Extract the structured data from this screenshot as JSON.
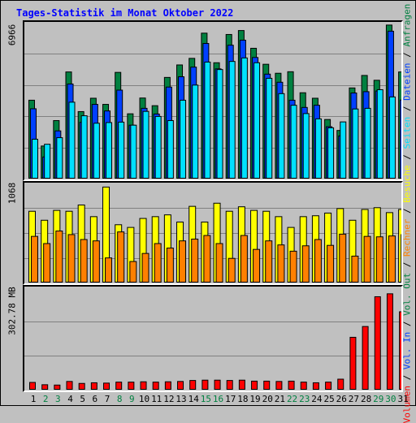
{
  "title": "Tages-Statistik im Monat Oktober 2022",
  "colors": {
    "anfragen": "#008040",
    "dateien": "#0040ff",
    "seiten": "#00e0ff",
    "besuche": "#ffff00",
    "rechner": "#ff8000",
    "volumen": "#ff0000",
    "weekend_day": "#008040",
    "weekday": "#000000"
  },
  "right_legend": [
    {
      "text": "Volumen",
      "color": "#ff0000"
    },
    {
      "text": " / ",
      "color": "#000000"
    },
    {
      "text": "Vol. In",
      "color": "#0040ff"
    },
    {
      "text": " / ",
      "color": "#000000"
    },
    {
      "text": "Vol. Out",
      "color": "#008040"
    },
    {
      "text": " / ",
      "color": "#000000"
    },
    {
      "text": "Rechner",
      "color": "#ff8000"
    },
    {
      "text": " / ",
      "color": "#000000"
    },
    {
      "text": "Besuche",
      "color": "#ffff00"
    },
    {
      "text": " / ",
      "color": "#000000"
    },
    {
      "text": "Seiten",
      "color": "#00e0ff"
    },
    {
      "text": " / ",
      "color": "#000000"
    },
    {
      "text": "Dateien",
      "color": "#0040ff"
    },
    {
      "text": " / ",
      "color": "#000000"
    },
    {
      "text": "Anfragen",
      "color": "#008040"
    }
  ],
  "chart_data": [
    {
      "type": "bar",
      "ymax_label": "6966",
      "ylim": [
        0,
        6966
      ],
      "categories": [
        "1",
        "2",
        "3",
        "4",
        "5",
        "6",
        "7",
        "8",
        "9",
        "10",
        "11",
        "12",
        "13",
        "14",
        "15",
        "16",
        "17",
        "18",
        "19",
        "20",
        "21",
        "22",
        "23",
        "24",
        "25",
        "26",
        "27",
        "28",
        "29",
        "30",
        "31"
      ],
      "weekend": [
        false,
        true,
        true,
        false,
        false,
        false,
        false,
        true,
        true,
        false,
        false,
        false,
        false,
        false,
        true,
        true,
        false,
        false,
        false,
        false,
        false,
        true,
        true,
        false,
        false,
        false,
        false,
        false,
        true,
        true,
        false
      ],
      "series": [
        {
          "name": "Anfragen",
          "values": [
            3560,
            1470,
            2630,
            4850,
            3040,
            3650,
            3370,
            4830,
            2940,
            3660,
            3310,
            4600,
            5170,
            5470,
            6620,
            5270,
            6560,
            6740,
            5930,
            5200,
            4790,
            4860,
            3900,
            3650,
            2680,
            2180,
            4120,
            4690,
            4470,
            6990,
            4850
          ]
        },
        {
          "name": "Dateien",
          "values": [
            3170,
            970,
            2160,
            4300,
            2550,
            3370,
            3070,
            4020,
            2420,
            3190,
            2930,
            4160,
            4630,
            5070,
            6150,
            4990,
            6070,
            6300,
            5510,
            4750,
            4380,
            3560,
            3230,
            3330,
            2350,
            1930,
            3890,
            3950,
            3980,
            6710,
            3570
          ]
        },
        {
          "name": "Seiten",
          "values": [
            1780,
            1550,
            1850,
            3470,
            2850,
            2510,
            2540,
            2560,
            2420,
            3050,
            2820,
            2630,
            3560,
            4250,
            5300,
            4960,
            5330,
            5490,
            5270,
            4560,
            3860,
            3330,
            2950,
            2710,
            2300,
            2570,
            3160,
            3190,
            4040,
            3710,
            3310
          ]
        }
      ]
    },
    {
      "type": "bar",
      "ymax_label": "1068",
      "ylim": [
        0,
        1068
      ],
      "categories": [
        "1",
        "2",
        "3",
        "4",
        "5",
        "6",
        "7",
        "8",
        "9",
        "10",
        "11",
        "12",
        "13",
        "14",
        "15",
        "16",
        "17",
        "18",
        "19",
        "20",
        "21",
        "22",
        "23",
        "24",
        "25",
        "26",
        "27",
        "28",
        "29",
        "30",
        "31"
      ],
      "series": [
        {
          "name": "Besuche",
          "values": [
            790,
            690,
            800,
            790,
            860,
            730,
            1060,
            640,
            610,
            710,
            730,
            750,
            670,
            845,
            670,
            880,
            790,
            840,
            800,
            790,
            730,
            610,
            730,
            740,
            770,
            820,
            690,
            810,
            830,
            775,
            810
          ]
        },
        {
          "name": "Rechner",
          "values": [
            510,
            430,
            570,
            530,
            475,
            460,
            270,
            560,
            230,
            320,
            430,
            380,
            460,
            480,
            520,
            430,
            265,
            520,
            365,
            460,
            415,
            345,
            405,
            475,
            410,
            535,
            290,
            510,
            505,
            515,
            530
          ]
        }
      ]
    },
    {
      "type": "bar",
      "ymax_label": "302.78 MB",
      "ylim": [
        0,
        302.78
      ],
      "categories": [
        "1",
        "2",
        "3",
        "4",
        "5",
        "6",
        "7",
        "8",
        "9",
        "10",
        "11",
        "12",
        "13",
        "14",
        "15",
        "16",
        "17",
        "18",
        "19",
        "20",
        "21",
        "22",
        "23",
        "24",
        "25",
        "26",
        "27",
        "28",
        "29",
        "30",
        "31"
      ],
      "series": [
        {
          "name": "Volumen",
          "values": [
            21,
            14,
            13,
            24,
            18,
            20,
            19,
            22,
            22,
            23,
            22,
            23,
            24,
            27,
            28,
            28,
            27,
            28,
            25,
            25,
            24,
            25,
            22,
            20,
            22,
            31,
            159,
            192,
            283,
            292,
            237
          ]
        }
      ]
    }
  ]
}
